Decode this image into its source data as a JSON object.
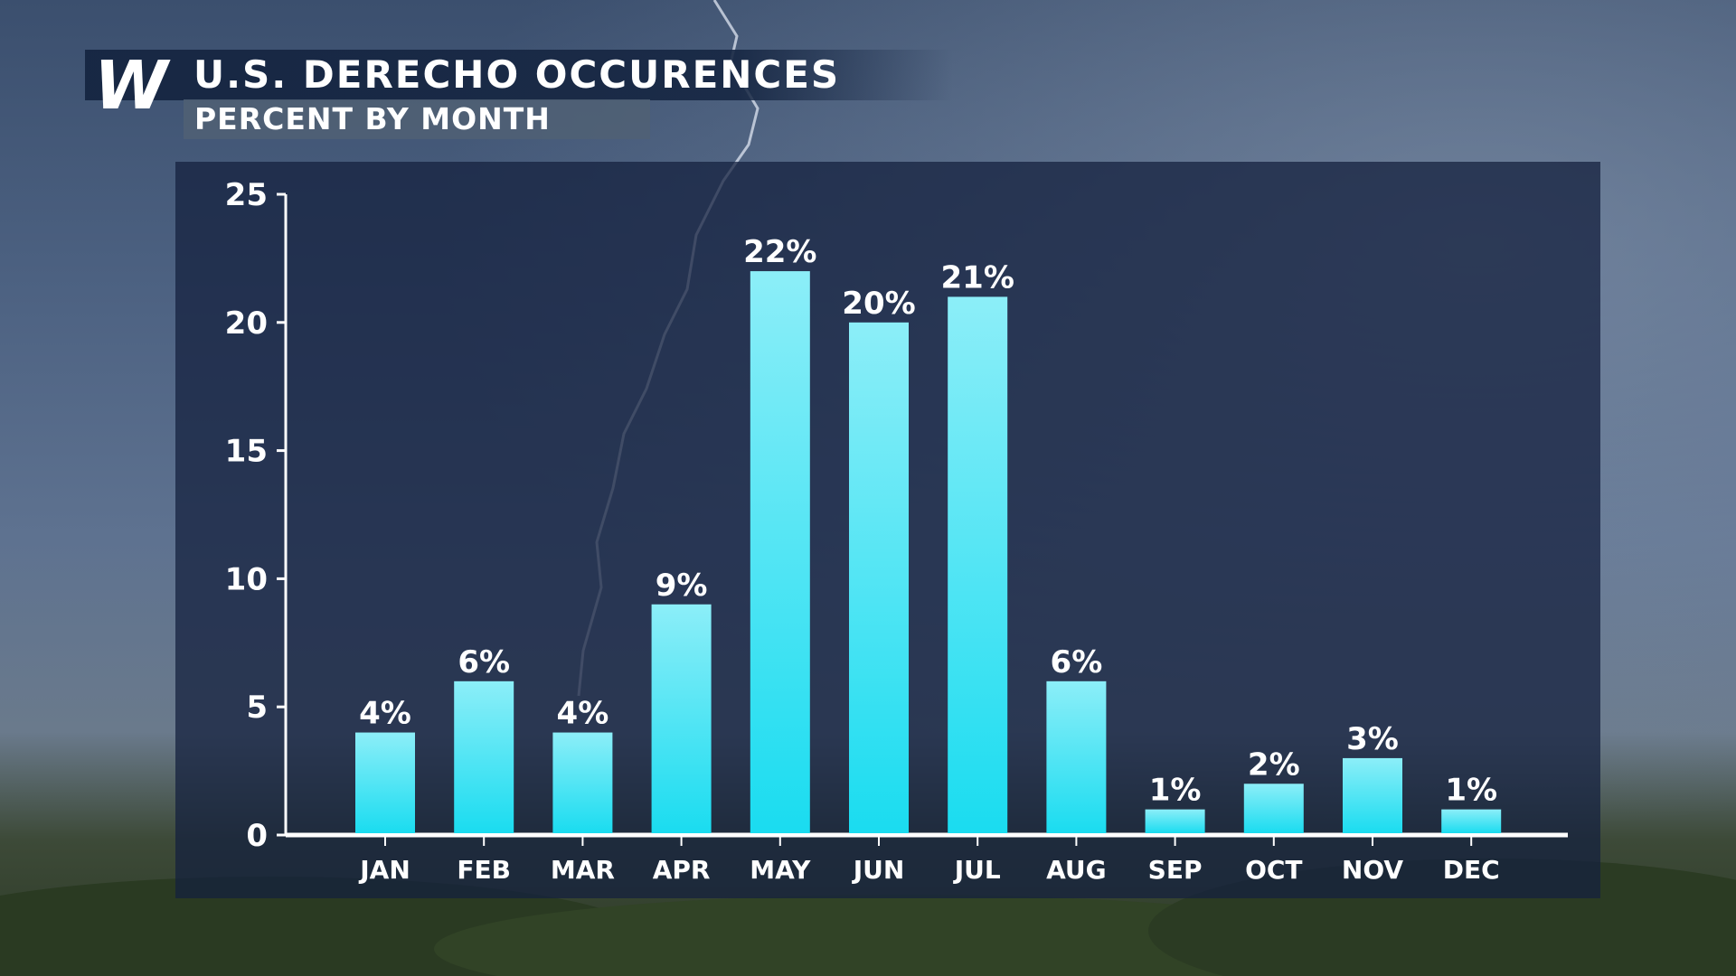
{
  "header": {
    "logo_text": "W",
    "title": "U.S. DERECHO OCCURENCES",
    "subtitle": "PERCENT BY MONTH"
  },
  "colors": {
    "bar_top": "#8ceef8",
    "bar_bottom": "#1adcf0",
    "panel": "#14213e",
    "title_bar": "#162642"
  },
  "chart_data": {
    "type": "bar",
    "categories": [
      "JAN",
      "FEB",
      "MAR",
      "APR",
      "MAY",
      "JUN",
      "JUL",
      "AUG",
      "SEP",
      "OCT",
      "NOV",
      "DEC"
    ],
    "values": [
      4,
      6,
      4,
      9,
      22,
      20,
      21,
      6,
      1,
      2,
      3,
      1
    ],
    "labels": [
      "4%",
      "6%",
      "4%",
      "9%",
      "22%",
      "20%",
      "21%",
      "6%",
      "1%",
      "2%",
      "3%",
      "1%"
    ],
    "yticks": [
      "0",
      "5",
      "10",
      "15",
      "20",
      "25"
    ],
    "ylim": [
      0,
      25
    ],
    "title": "U.S. DERECHO OCCURENCES",
    "subtitle": "PERCENT BY MONTH",
    "grid": false,
    "legend": "none"
  }
}
